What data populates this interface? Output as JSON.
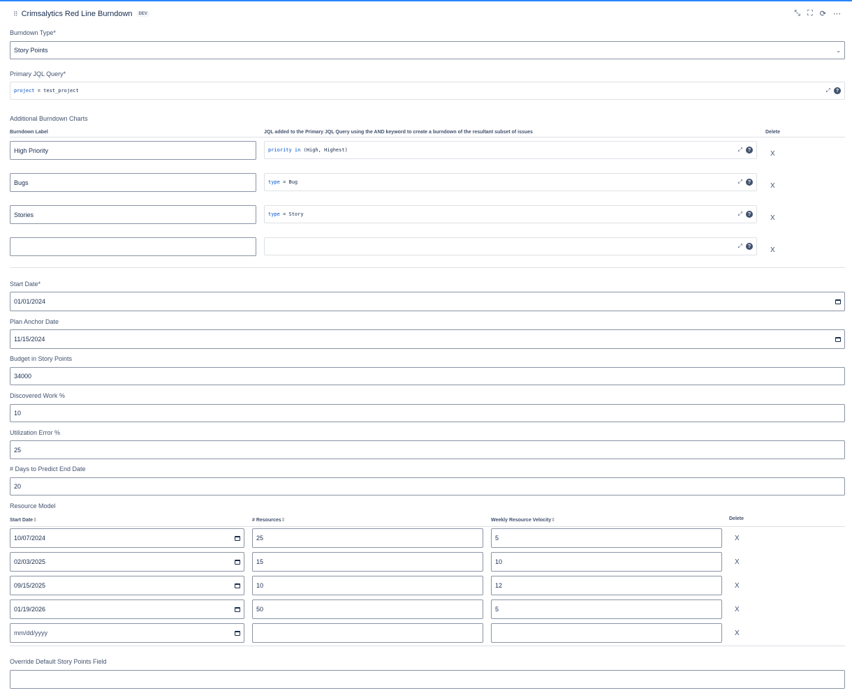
{
  "header": {
    "title": "Crimsalytics Red Line Burndown",
    "badge": "DEV",
    "icons": [
      "minimize-icon",
      "fullscreen-icon",
      "refresh-icon",
      "more-icon"
    ]
  },
  "burndown_type": {
    "label": "Burndown Type*",
    "value": "Story Points"
  },
  "primary_jql": {
    "label": "Primary JQL Query*",
    "keyword": "project",
    "rest": " = test_project"
  },
  "additional": {
    "label": "Additional Burndown Charts",
    "col_label": "Burndown Label",
    "col_jql": "JQL added to the Primary JQL Query using the AND keyword to create a burndown of the resultant subset of issues",
    "col_delete": "Delete",
    "rows": [
      {
        "label": "High Priority",
        "kw": "priority in",
        "rest": " (High, Highest)"
      },
      {
        "label": "Bugs",
        "kw": "type",
        "rest": " = Bug"
      },
      {
        "label": "Stories",
        "kw": "type",
        "rest": " = Story"
      },
      {
        "label": "",
        "kw": "",
        "rest": ""
      }
    ],
    "delete_label": "X"
  },
  "fields": {
    "start_date": {
      "label": "Start Date*",
      "value": "01/01/2024"
    },
    "plan_anchor": {
      "label": "Plan Anchor Date",
      "value": "11/15/2024"
    },
    "budget": {
      "label": "Budget in Story Points",
      "value": "34000"
    },
    "discovered": {
      "label": "Discovered Work %",
      "value": "10"
    },
    "utilization": {
      "label": "Utilization Error %",
      "value": "25"
    },
    "days": {
      "label": "# Days to Predict End Date",
      "value": "20"
    }
  },
  "resource_model": {
    "label": "Resource Model",
    "col_start": "Start Date",
    "col_resources": "# Resources",
    "col_velocity": "Weekly Resource Velocity",
    "col_delete": "Delete",
    "sort_glyph": "⇕",
    "rows": [
      {
        "start": "10/07/2024",
        "resources": "25",
        "velocity": "5"
      },
      {
        "start": "02/03/2025",
        "resources": "15",
        "velocity": "10"
      },
      {
        "start": "09/15/2025",
        "resources": "10",
        "velocity": "12"
      },
      {
        "start": "01/19/2026",
        "resources": "50",
        "velocity": "5"
      },
      {
        "start": "mm/dd/yyyy",
        "resources": "",
        "velocity": ""
      }
    ],
    "delete_label": "X"
  },
  "override": {
    "label": "Override Default Story Points Field",
    "value": ""
  }
}
